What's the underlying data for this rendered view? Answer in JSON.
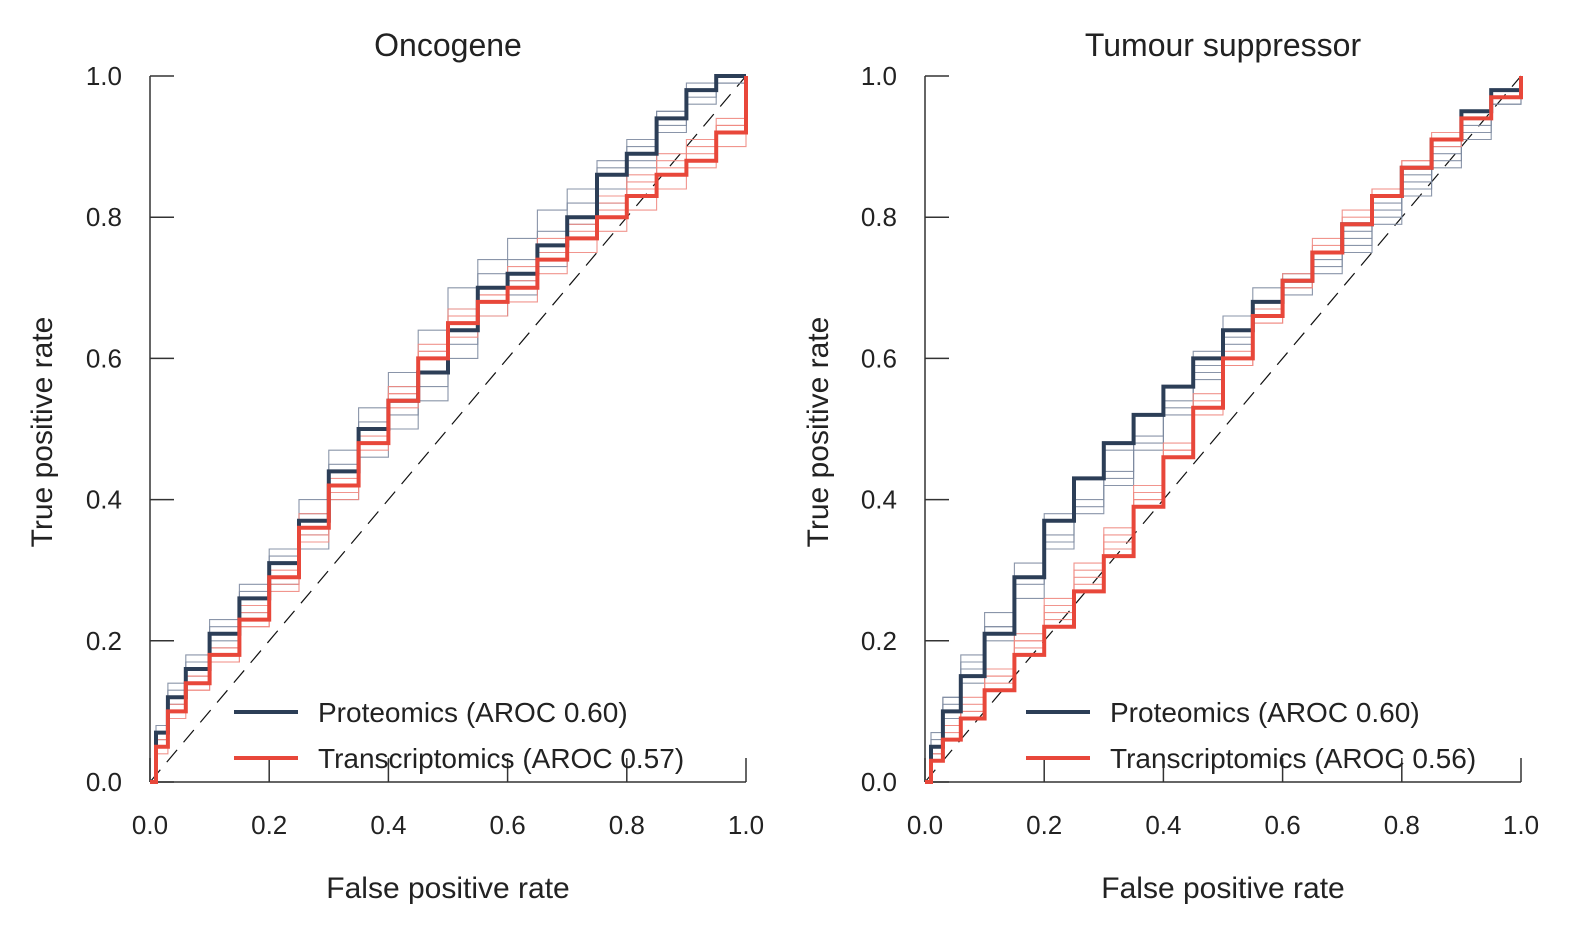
{
  "colors": {
    "proteomics": "#2c3e57",
    "transcriptomics": "#e8473a",
    "proteomics_thin": "#7d8aa0",
    "transcriptomics_thin": "#f08a82",
    "axis": "#333333",
    "diagonal": "#111111"
  },
  "chart_data": [
    {
      "type": "line",
      "title": "Oncogene",
      "xlabel": "False positive rate",
      "ylabel": "True positive rate",
      "xlim": [
        0,
        1
      ],
      "ylim": [
        0,
        1
      ],
      "xticks": [
        "0.0",
        "0.2",
        "0.4",
        "0.6",
        "0.8",
        "1.0"
      ],
      "yticks": [
        "0.0",
        "0.2",
        "0.4",
        "0.6",
        "0.8",
        "1.0"
      ],
      "grid": false,
      "legend_position": "bottom-right",
      "diagonal_reference": true,
      "series": [
        {
          "name": "Proteomics (AROC 0.60)",
          "color_key": "proteomics",
          "x": [
            0,
            0.01,
            0.03,
            0.06,
            0.1,
            0.15,
            0.2,
            0.25,
            0.3,
            0.35,
            0.4,
            0.45,
            0.5,
            0.55,
            0.6,
            0.65,
            0.7,
            0.75,
            0.8,
            0.85,
            0.9,
            0.95,
            1
          ],
          "y": [
            0,
            0.07,
            0.12,
            0.16,
            0.21,
            0.26,
            0.31,
            0.37,
            0.44,
            0.5,
            0.54,
            0.58,
            0.64,
            0.7,
            0.72,
            0.76,
            0.8,
            0.86,
            0.89,
            0.94,
            0.98,
            1,
            1
          ]
        },
        {
          "name": "Transcriptomics (AROC 0.57)",
          "color_key": "transcriptomics",
          "x": [
            0,
            0.01,
            0.03,
            0.06,
            0.1,
            0.15,
            0.2,
            0.25,
            0.3,
            0.35,
            0.4,
            0.45,
            0.5,
            0.55,
            0.6,
            0.65,
            0.7,
            0.75,
            0.8,
            0.85,
            0.9,
            0.95,
            1
          ],
          "y": [
            0,
            0.05,
            0.1,
            0.14,
            0.18,
            0.23,
            0.29,
            0.36,
            0.42,
            0.48,
            0.54,
            0.6,
            0.65,
            0.68,
            0.7,
            0.74,
            0.77,
            0.8,
            0.83,
            0.86,
            0.88,
            0.92,
            1
          ]
        }
      ],
      "thin_series": [
        {
          "color_key": "proteomics_thin",
          "y": [
            0,
            0.08,
            0.14,
            0.18,
            0.23,
            0.28,
            0.33,
            0.4,
            0.47,
            0.53,
            0.58,
            0.64,
            0.7,
            0.74,
            0.77,
            0.81,
            0.84,
            0.88,
            0.91,
            0.95,
            0.99,
            1,
            1
          ]
        },
        {
          "color_key": "proteomics_thin",
          "y": [
            0,
            0.06,
            0.11,
            0.15,
            0.2,
            0.24,
            0.29,
            0.35,
            0.42,
            0.48,
            0.52,
            0.56,
            0.62,
            0.68,
            0.71,
            0.75,
            0.79,
            0.84,
            0.88,
            0.93,
            0.97,
            0.99,
            1
          ]
        },
        {
          "color_key": "proteomics_thin",
          "y": [
            0,
            0.07,
            0.13,
            0.17,
            0.22,
            0.27,
            0.32,
            0.38,
            0.45,
            0.51,
            0.56,
            0.6,
            0.67,
            0.72,
            0.74,
            0.78,
            0.82,
            0.87,
            0.9,
            0.95,
            0.98,
            1,
            1
          ]
        },
        {
          "color_key": "proteomics_thin",
          "y": [
            0,
            0.06,
            0.1,
            0.14,
            0.19,
            0.23,
            0.28,
            0.33,
            0.4,
            0.46,
            0.5,
            0.54,
            0.6,
            0.66,
            0.69,
            0.73,
            0.77,
            0.82,
            0.87,
            0.92,
            0.96,
            0.99,
            1
          ]
        },
        {
          "color_key": "transcriptomics_thin",
          "y": [
            0,
            0.06,
            0.11,
            0.15,
            0.19,
            0.25,
            0.31,
            0.38,
            0.44,
            0.5,
            0.56,
            0.62,
            0.67,
            0.7,
            0.73,
            0.77,
            0.8,
            0.83,
            0.86,
            0.89,
            0.91,
            0.94,
            1
          ]
        },
        {
          "color_key": "transcriptomics_thin",
          "y": [
            0,
            0.04,
            0.09,
            0.13,
            0.17,
            0.22,
            0.27,
            0.34,
            0.4,
            0.47,
            0.53,
            0.58,
            0.63,
            0.66,
            0.68,
            0.72,
            0.75,
            0.78,
            0.81,
            0.84,
            0.87,
            0.9,
            1
          ]
        },
        {
          "color_key": "transcriptomics_thin",
          "y": [
            0,
            0.05,
            0.1,
            0.13,
            0.17,
            0.22,
            0.28,
            0.35,
            0.41,
            0.48,
            0.55,
            0.61,
            0.66,
            0.69,
            0.72,
            0.76,
            0.79,
            0.82,
            0.85,
            0.88,
            0.9,
            0.93,
            1
          ]
        },
        {
          "color_key": "transcriptomics_thin",
          "y": [
            0,
            0.05,
            0.1,
            0.15,
            0.19,
            0.24,
            0.3,
            0.37,
            0.43,
            0.49,
            0.55,
            0.61,
            0.66,
            0.69,
            0.71,
            0.75,
            0.78,
            0.81,
            0.84,
            0.87,
            0.89,
            0.93,
            1
          ]
        }
      ]
    },
    {
      "type": "line",
      "title": "Tumour suppressor",
      "xlabel": "False positive rate",
      "ylabel": "True positive rate",
      "xlim": [
        0,
        1
      ],
      "ylim": [
        0,
        1
      ],
      "xticks": [
        "0.0",
        "0.2",
        "0.4",
        "0.6",
        "0.8",
        "1.0"
      ],
      "yticks": [
        "0.0",
        "0.2",
        "0.4",
        "0.6",
        "0.8",
        "1.0"
      ],
      "grid": false,
      "legend_position": "bottom-right",
      "diagonal_reference": true,
      "series": [
        {
          "name": "Proteomics (AROC 0.60)",
          "color_key": "proteomics",
          "x": [
            0,
            0.01,
            0.03,
            0.06,
            0.1,
            0.15,
            0.2,
            0.25,
            0.3,
            0.35,
            0.4,
            0.45,
            0.5,
            0.55,
            0.6,
            0.65,
            0.7,
            0.75,
            0.8,
            0.85,
            0.9,
            0.95,
            1
          ],
          "y": [
            0,
            0.05,
            0.1,
            0.15,
            0.21,
            0.29,
            0.37,
            0.43,
            0.48,
            0.52,
            0.56,
            0.6,
            0.64,
            0.68,
            0.71,
            0.75,
            0.79,
            0.83,
            0.87,
            0.91,
            0.95,
            0.98,
            1
          ]
        },
        {
          "name": "Transcriptomics (AROC 0.56)",
          "color_key": "transcriptomics",
          "x": [
            0,
            0.01,
            0.03,
            0.06,
            0.1,
            0.15,
            0.2,
            0.25,
            0.3,
            0.35,
            0.4,
            0.45,
            0.5,
            0.55,
            0.6,
            0.65,
            0.7,
            0.75,
            0.8,
            0.85,
            0.9,
            0.95,
            1
          ],
          "y": [
            0,
            0.03,
            0.06,
            0.09,
            0.13,
            0.18,
            0.22,
            0.27,
            0.32,
            0.39,
            0.46,
            0.53,
            0.6,
            0.66,
            0.71,
            0.75,
            0.79,
            0.83,
            0.87,
            0.91,
            0.94,
            0.97,
            1
          ]
        }
      ],
      "thin_series": [
        {
          "color_key": "proteomics_thin",
          "y": [
            0,
            0.07,
            0.12,
            0.18,
            0.24,
            0.31,
            0.38,
            0.43,
            0.47,
            0.52,
            0.56,
            0.61,
            0.66,
            0.7,
            0.72,
            0.75,
            0.78,
            0.82,
            0.86,
            0.9,
            0.94,
            0.97,
            1
          ]
        },
        {
          "color_key": "proteomics_thin",
          "y": [
            0,
            0.05,
            0.11,
            0.16,
            0.22,
            0.28,
            0.34,
            0.39,
            0.43,
            0.48,
            0.53,
            0.58,
            0.63,
            0.67,
            0.7,
            0.74,
            0.77,
            0.81,
            0.85,
            0.89,
            0.93,
            0.97,
            1
          ]
        },
        {
          "color_key": "proteomics_thin",
          "y": [
            0,
            0.06,
            0.12,
            0.17,
            0.22,
            0.29,
            0.35,
            0.4,
            0.44,
            0.49,
            0.54,
            0.59,
            0.64,
            0.68,
            0.7,
            0.73,
            0.76,
            0.8,
            0.84,
            0.88,
            0.92,
            0.96,
            1
          ]
        },
        {
          "color_key": "proteomics_thin",
          "y": [
            0,
            0.04,
            0.09,
            0.14,
            0.2,
            0.26,
            0.33,
            0.38,
            0.42,
            0.47,
            0.52,
            0.57,
            0.62,
            0.66,
            0.69,
            0.72,
            0.75,
            0.79,
            0.83,
            0.87,
            0.91,
            0.96,
            1
          ]
        },
        {
          "color_key": "transcriptomics_thin",
          "y": [
            0,
            0.04,
            0.08,
            0.12,
            0.16,
            0.21,
            0.26,
            0.31,
            0.36,
            0.42,
            0.48,
            0.55,
            0.61,
            0.67,
            0.72,
            0.77,
            0.81,
            0.84,
            0.88,
            0.92,
            0.95,
            0.98,
            1
          ]
        },
        {
          "color_key": "transcriptomics_thin",
          "y": [
            0,
            0.03,
            0.07,
            0.1,
            0.15,
            0.2,
            0.25,
            0.3,
            0.35,
            0.41,
            0.47,
            0.53,
            0.59,
            0.65,
            0.7,
            0.75,
            0.79,
            0.83,
            0.87,
            0.9,
            0.94,
            0.97,
            1
          ]
        },
        {
          "color_key": "transcriptomics_thin",
          "y": [
            0,
            0.04,
            0.08,
            0.11,
            0.15,
            0.2,
            0.24,
            0.29,
            0.34,
            0.4,
            0.47,
            0.54,
            0.6,
            0.66,
            0.71,
            0.76,
            0.8,
            0.84,
            0.88,
            0.91,
            0.95,
            0.98,
            1
          ]
        },
        {
          "color_key": "transcriptomics_thin",
          "y": [
            0,
            0.03,
            0.06,
            0.1,
            0.14,
            0.19,
            0.23,
            0.28,
            0.33,
            0.4,
            0.46,
            0.52,
            0.59,
            0.65,
            0.7,
            0.75,
            0.79,
            0.83,
            0.87,
            0.91,
            0.94,
            0.97,
            1
          ]
        }
      ]
    }
  ]
}
